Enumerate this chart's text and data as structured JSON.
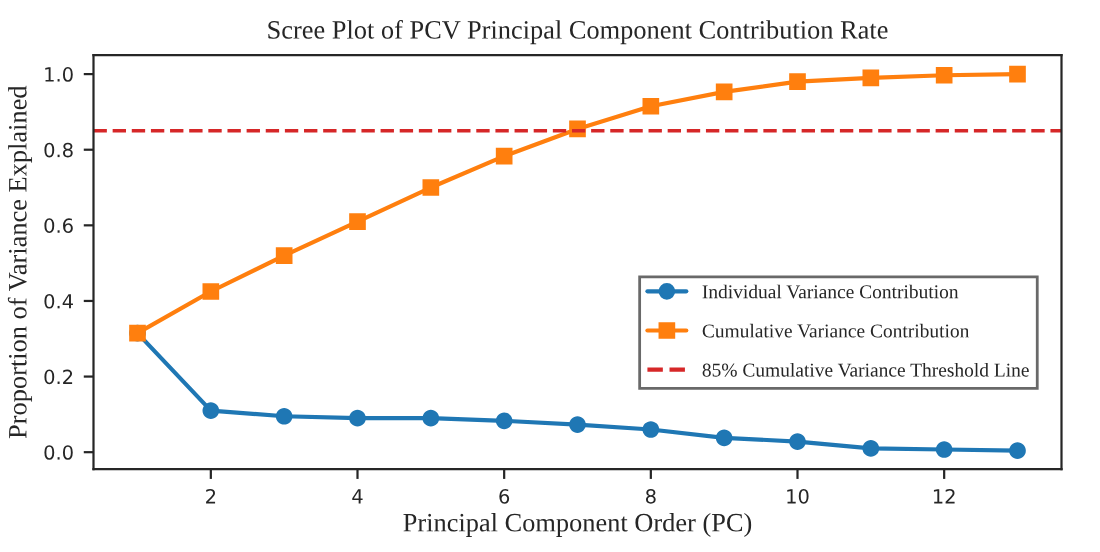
{
  "chart_data": {
    "type": "line",
    "title": "Scree Plot of PCV Principal Component Contribution Rate",
    "xlabel": "Principal Component Order (PC)",
    "ylabel": "Proportion of Variance Explained",
    "x": [
      1,
      2,
      3,
      4,
      5,
      6,
      7,
      8,
      9,
      10,
      11,
      12,
      13
    ],
    "series": [
      {
        "name": "Individual Variance Contribution",
        "color": "#1f77b4",
        "marker": "circle",
        "values": [
          0.315,
          0.11,
          0.095,
          0.09,
          0.09,
          0.083,
          0.073,
          0.06,
          0.038,
          0.028,
          0.01,
          0.007,
          0.004
        ]
      },
      {
        "name": "Cumulative Variance Contribution",
        "color": "#ff7f0e",
        "marker": "square",
        "values": [
          0.315,
          0.425,
          0.52,
          0.61,
          0.7,
          0.783,
          0.855,
          0.915,
          0.953,
          0.98,
          0.99,
          0.997,
          1.0
        ]
      }
    ],
    "ref_lines": [
      {
        "axis": "y",
        "value": 0.85,
        "label": "85% Cumulative Variance Threshold Line",
        "color": "#d62728",
        "line_style": "dashed"
      }
    ],
    "xlim": [
      0.4,
      13.6
    ],
    "ylim": [
      -0.045,
      1.05
    ],
    "xticks": [
      2,
      4,
      6,
      8,
      10,
      12
    ],
    "yticks": [
      {
        "value": 0,
        "label": "0.0"
      },
      0.2,
      0.4,
      0.6,
      0.8,
      {
        "value": 1,
        "label": "1.0"
      }
    ],
    "grid": false,
    "legend": "right"
  }
}
